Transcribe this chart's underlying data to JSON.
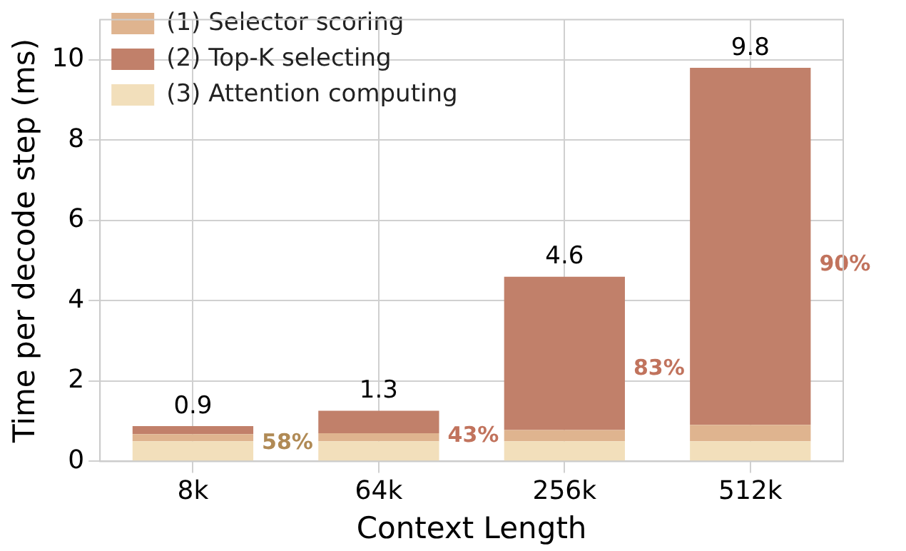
{
  "chart_data": {
    "type": "bar",
    "stacked": true,
    "xlabel": "Context Length",
    "ylabel": "Time per decode step (ms)",
    "categories": [
      "8k",
      "64k",
      "256k",
      "512k"
    ],
    "series": [
      {
        "name": "(3) Attention computing",
        "color": "#f2dfbb",
        "values": [
          0.5,
          0.5,
          0.5,
          0.5
        ]
      },
      {
        "name": "(1) Selector scoring",
        "color": "#dfb48f",
        "values": [
          0.18,
          0.2,
          0.28,
          0.41
        ]
      },
      {
        "name": "(2) Top-K selecting",
        "color": "#c1806a",
        "values": [
          0.2,
          0.56,
          3.82,
          8.89
        ]
      }
    ],
    "totals": [
      "0.9",
      "1.3",
      "4.6",
      "9.8"
    ],
    "annotations": [
      "58%",
      "43%",
      "83%",
      "90%"
    ],
    "ylim": [
      0,
      11
    ],
    "yticks": [
      0,
      2,
      4,
      6,
      8,
      10
    ],
    "grid": true,
    "legend": "top left"
  }
}
